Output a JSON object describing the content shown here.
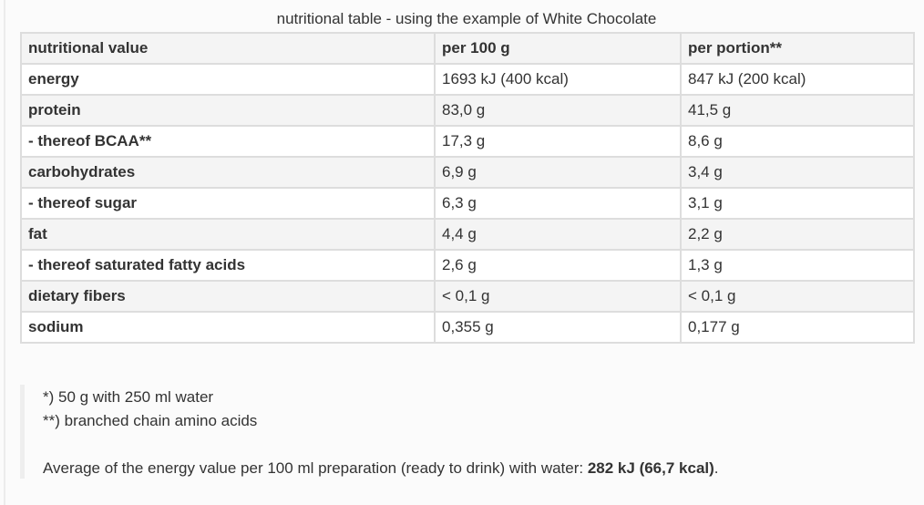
{
  "caption": "nutritional table - using the example of White Chocolate",
  "table": {
    "headers": [
      "nutritional value",
      "per 100 g",
      "per portion**"
    ],
    "rows": [
      {
        "label": "energy",
        "per100": "1693 kJ (400 kcal)",
        "portion": "847 kJ (200 kcal)"
      },
      {
        "label": "protein",
        "per100": "83,0 g",
        "portion": "41,5 g"
      },
      {
        "label": "- thereof BCAA**",
        "per100": "17,3 g",
        "portion": "8,6 g"
      },
      {
        "label": "carbohydrates",
        "per100": "6,9 g",
        "portion": "3,4 g"
      },
      {
        "label": "- thereof sugar",
        "per100": "6,3 g",
        "portion": "3,1 g"
      },
      {
        "label": "fat",
        "per100": "4,4 g",
        "portion": "2,2 g"
      },
      {
        "label": "- thereof saturated fatty acids",
        "per100": "2,6 g",
        "portion": "1,3 g"
      },
      {
        "label": "dietary fibers",
        "per100": "< 0,1 g",
        "portion": "< 0,1 g"
      },
      {
        "label": "sodium",
        "per100": "0,355 g",
        "portion": "0,177 g"
      }
    ]
  },
  "notes": {
    "footnote1": "*) 50 g with 250 ml water",
    "footnote2": "**) branched chain amino acids",
    "average_prefix": "Average of the energy value per 100 ml preparation (ready to drink) with water: ",
    "average_value": "282 kJ (66,7 kcal)",
    "average_suffix": "."
  },
  "colors": {
    "border": "#dddddd",
    "row_alt": "#f4f4f4",
    "text": "#333333",
    "quote_border": "#eeeeee"
  }
}
